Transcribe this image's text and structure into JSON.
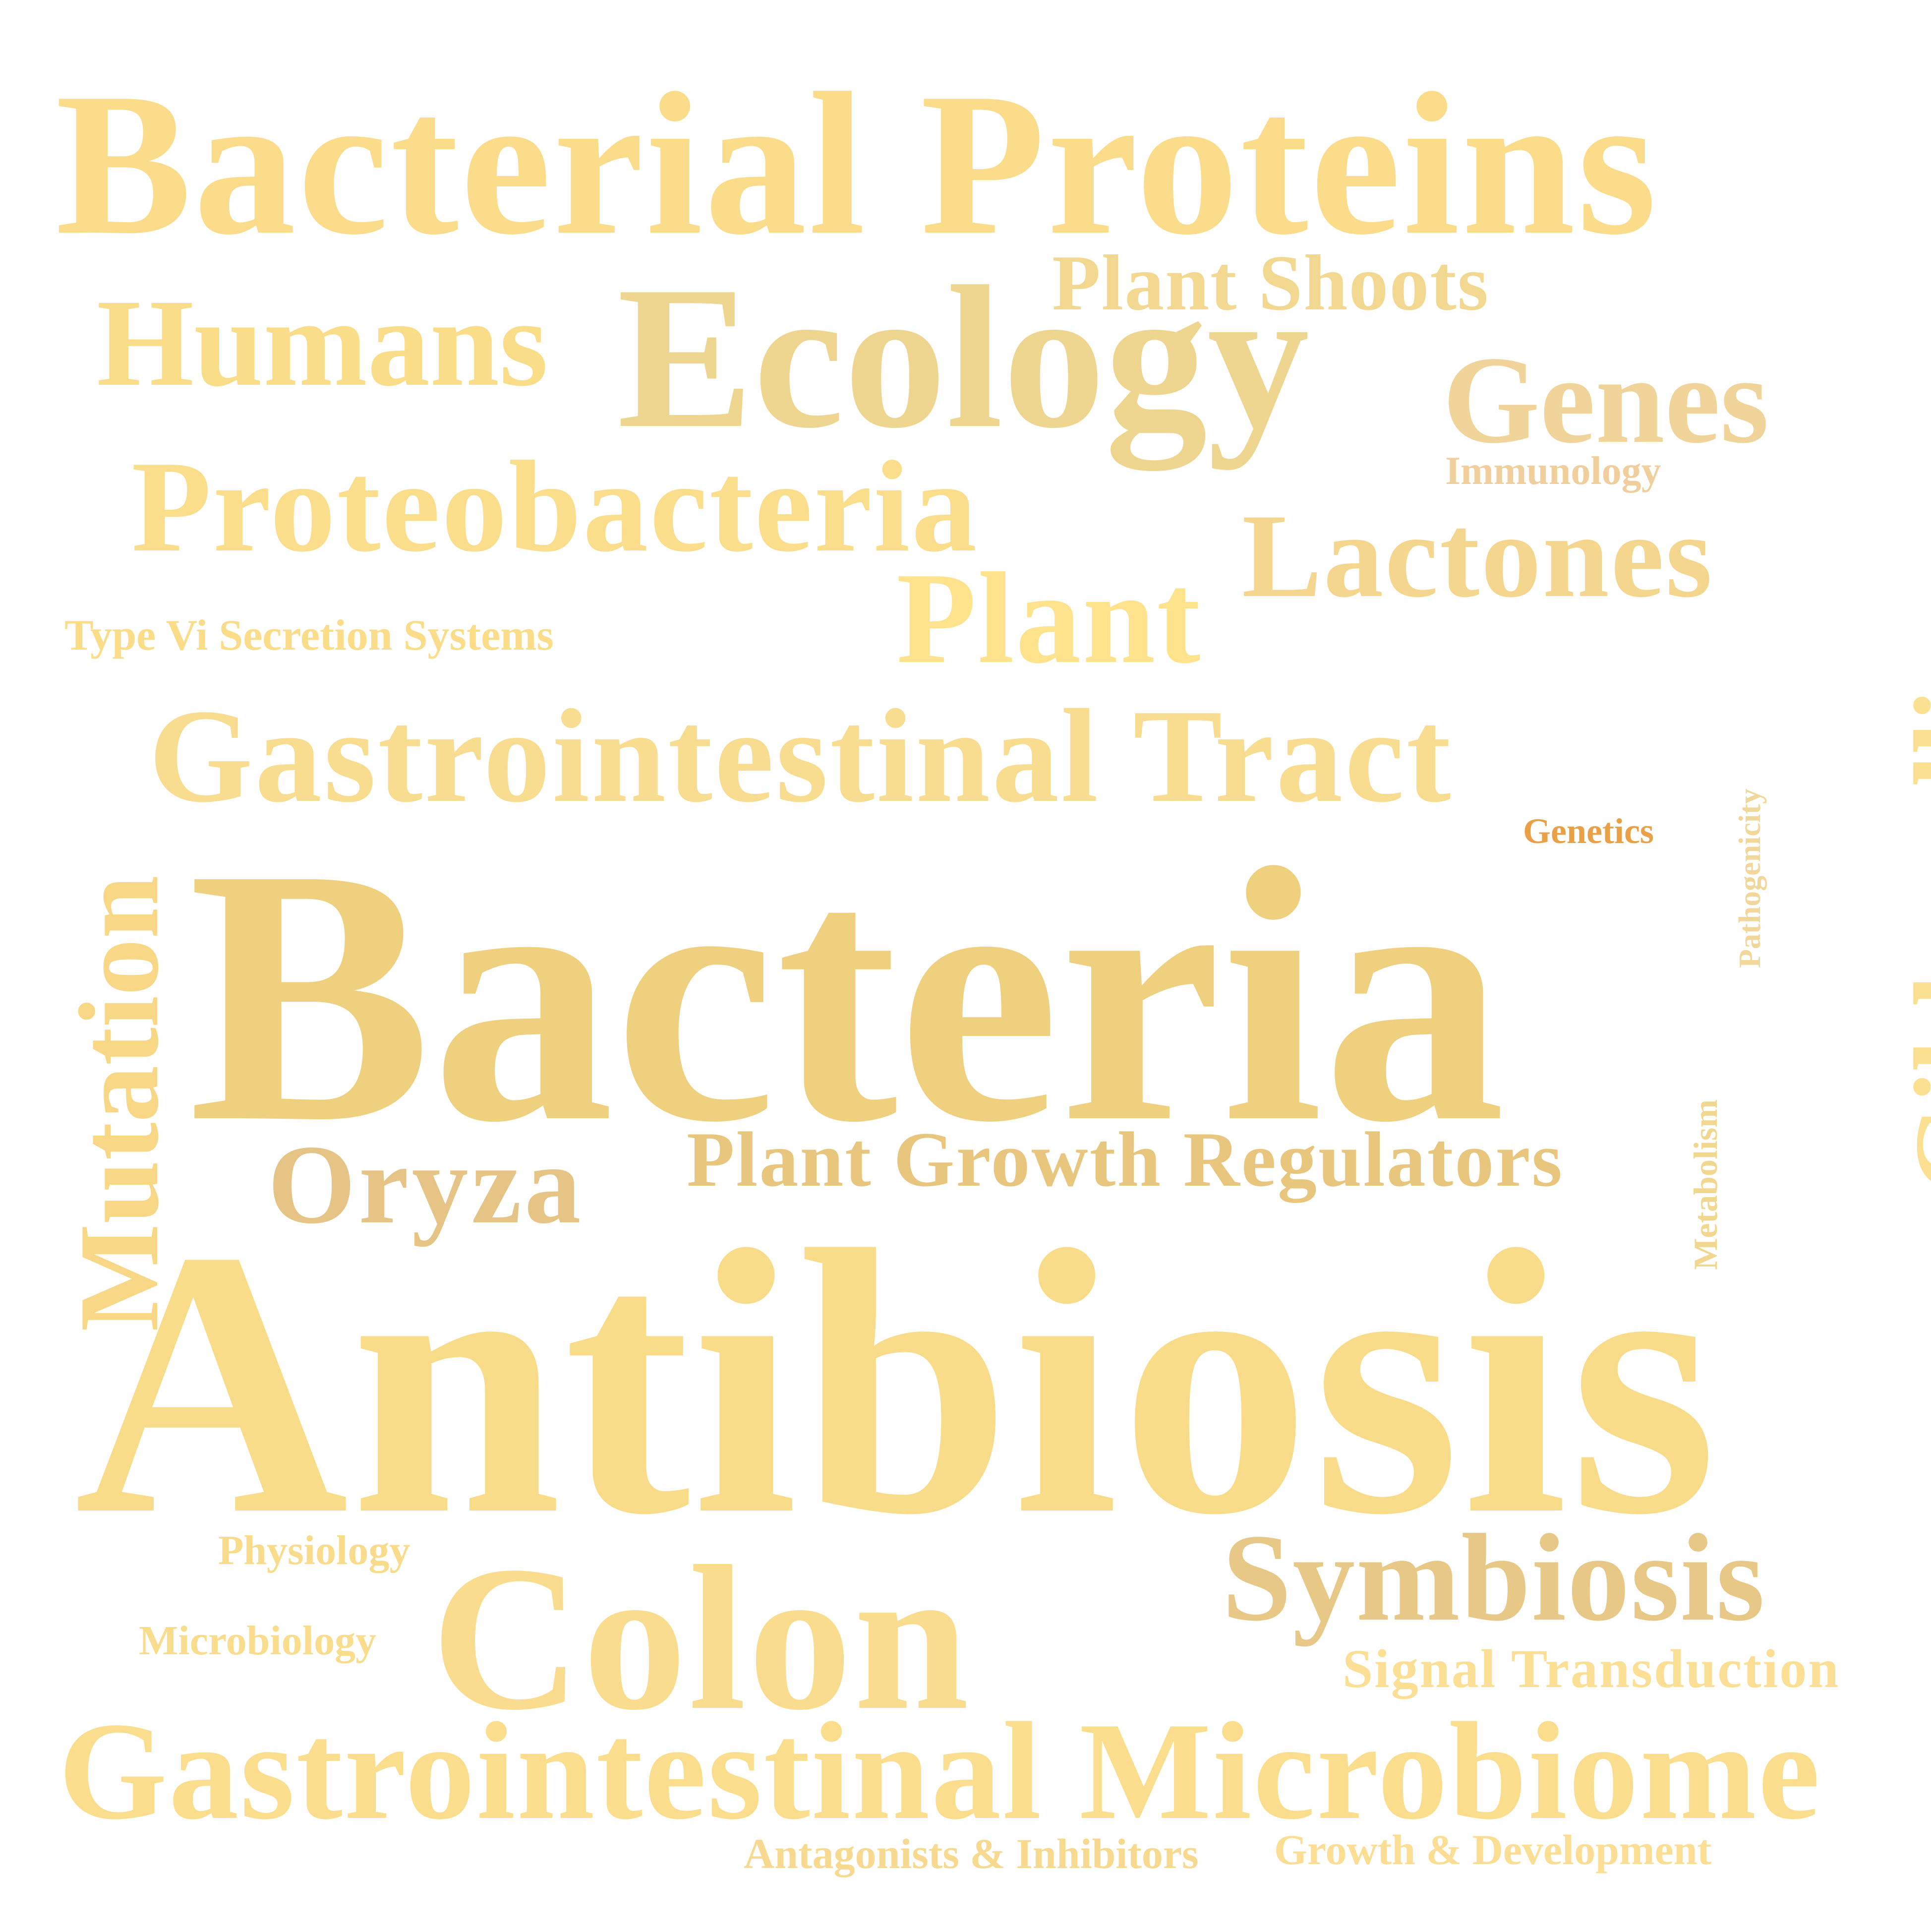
{
  "words": {
    "bacterial_proteins": {
      "text": "Bacterial Proteins",
      "color": "#FADC8A"
    },
    "plant_shoots": {
      "text": "Plant Shoots",
      "color": "#F2D891"
    },
    "humans": {
      "text": "Humans",
      "color": "#FADD89"
    },
    "ecology": {
      "text": "Ecology",
      "color": "#EFD690"
    },
    "genes": {
      "text": "Genes",
      "color": "#F0D49A"
    },
    "immunology": {
      "text": "Immunology",
      "color": "#F1CF9D"
    },
    "proteobacteria": {
      "text": "Proteobacteria",
      "color": "#FBDE8C"
    },
    "lactones": {
      "text": "Lactones",
      "color": "#F5D68F"
    },
    "plant": {
      "text": "Plant",
      "color": "#FEE28C"
    },
    "type_vi_secretion_systems": {
      "text": "Type Vi Secretion Systems",
      "color": "#FBDC88"
    },
    "gibberellins": {
      "text": "Gibberellins",
      "color": "#FCE091"
    },
    "gastrointestinal_tract": {
      "text": "Gastrointestinal Tract",
      "color": "#F8DC8F"
    },
    "pathogenicity": {
      "text": "Pathogenicity",
      "color": "#F2D79A"
    },
    "genetics": {
      "text": "Genetics",
      "color": "#E9A046"
    },
    "bacteria": {
      "text": "Bacteria",
      "color": "#EFD07F"
    },
    "mutation": {
      "text": "Mutation",
      "color": "#F8D887"
    },
    "metabolism": {
      "text": "Metabolism",
      "color": "#F2D791"
    },
    "oryza": {
      "text": "Oryza",
      "color": "#E6C486"
    },
    "plant_growth_regulators": {
      "text": "Plant Growth Regulators",
      "color": "#E9C67E"
    },
    "antibiosis": {
      "text": "Antibiosis",
      "color": "#F9DC89"
    },
    "physiology": {
      "text": "Physiology",
      "color": "#F8DC8B"
    },
    "colon": {
      "text": "Colon",
      "color": "#FADC8E"
    },
    "symbiosis": {
      "text": "Symbiosis",
      "color": "#E8C886"
    },
    "microbiology": {
      "text": "Microbiology",
      "color": "#F9DC8C"
    },
    "signal_transduction": {
      "text": "Signal Transduction",
      "color": "#FBDF94"
    },
    "gastrointestinal_microbiome": {
      "text": "Gastrointestinal Microbiome",
      "color": "#FADE8D"
    },
    "antagonists_inhibitors": {
      "text": "Antagonists & Inhibitors",
      "color": "#F8D990"
    },
    "growth_development": {
      "text": "Growth & Development",
      "color": "#FBDD93"
    }
  }
}
